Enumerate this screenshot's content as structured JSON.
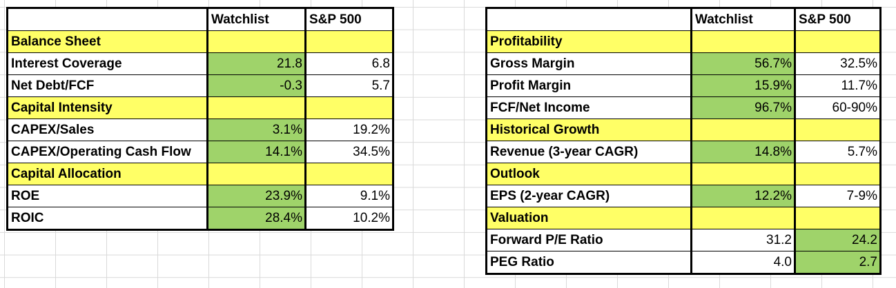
{
  "colors": {
    "section_fill": "#ffff66",
    "highlight_fill": "#9fd36a",
    "border": "#000000",
    "gridline": "#d9d9d9"
  },
  "left_table": {
    "headers": [
      "",
      "Watchlist",
      "S&P 500"
    ],
    "rows": [
      {
        "type": "section",
        "label": "Balance Sheet"
      },
      {
        "type": "data",
        "label": "Interest Coverage",
        "watchlist": "21.8",
        "sp500": "6.8",
        "highlight": "watchlist"
      },
      {
        "type": "data",
        "label": "Net Debt/FCF",
        "watchlist": "-0.3",
        "sp500": "5.7",
        "highlight": "watchlist"
      },
      {
        "type": "section",
        "label": "Capital Intensity"
      },
      {
        "type": "data",
        "label": "CAPEX/Sales",
        "watchlist": "3.1%",
        "sp500": "19.2%",
        "highlight": "watchlist"
      },
      {
        "type": "data",
        "label": "CAPEX/Operating Cash Flow",
        "watchlist": "14.1%",
        "sp500": "34.5%",
        "highlight": "watchlist"
      },
      {
        "type": "section",
        "label": "Capital Allocation"
      },
      {
        "type": "data",
        "label": "ROE",
        "watchlist": "23.9%",
        "sp500": "9.1%",
        "highlight": "watchlist"
      },
      {
        "type": "data",
        "label": "ROIC",
        "watchlist": "28.4%",
        "sp500": "10.2%",
        "highlight": "watchlist"
      }
    ]
  },
  "right_table": {
    "headers": [
      "",
      "Watchlist",
      "S&P 500"
    ],
    "rows": [
      {
        "type": "section",
        "label": "Profitability"
      },
      {
        "type": "data",
        "label": "Gross Margin",
        "watchlist": "56.7%",
        "sp500": "32.5%",
        "highlight": "watchlist"
      },
      {
        "type": "data",
        "label": "Profit Margin",
        "watchlist": "15.9%",
        "sp500": "11.7%",
        "highlight": "watchlist"
      },
      {
        "type": "data",
        "label": "FCF/Net Income",
        "watchlist": "96.7%",
        "sp500": "60-90%",
        "highlight": "watchlist"
      },
      {
        "type": "section",
        "label": "Historical Growth"
      },
      {
        "type": "data",
        "label": "Revenue (3-year CAGR)",
        "watchlist": "14.8%",
        "sp500": "5.7%",
        "highlight": "watchlist"
      },
      {
        "type": "section",
        "label": "Outlook"
      },
      {
        "type": "data",
        "label": "EPS (2-year CAGR)",
        "watchlist": "12.2%",
        "sp500": "7-9%",
        "highlight": "watchlist"
      },
      {
        "type": "section",
        "label": "Valuation"
      },
      {
        "type": "data",
        "label": "Forward P/E Ratio",
        "watchlist": "31.2",
        "sp500": "24.2",
        "highlight": "sp500"
      },
      {
        "type": "data",
        "label": "PEG Ratio",
        "watchlist": "4.0",
        "sp500": "2.7",
        "highlight": "sp500"
      }
    ]
  }
}
